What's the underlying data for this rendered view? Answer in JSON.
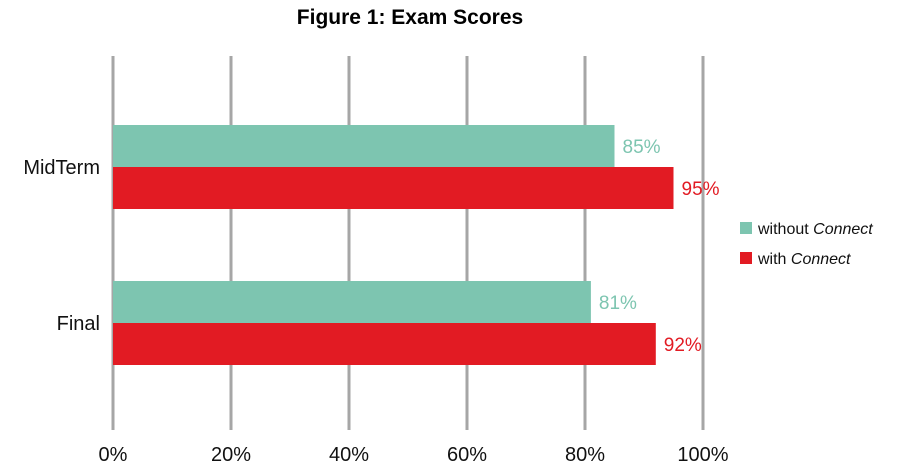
{
  "chart_data": {
    "type": "bar",
    "orientation": "horizontal",
    "title": "Figure 1: Exam Scores",
    "categories": [
      "MidTerm",
      "Final"
    ],
    "series": [
      {
        "name": "without Connect",
        "name_plain": "without ",
        "name_italic": "Connect",
        "color": "#7dc5b0",
        "values": [
          85,
          81
        ],
        "labels": [
          "85%",
          "81%"
        ]
      },
      {
        "name": "with Connect",
        "name_plain": "with ",
        "name_italic": "Connect",
        "color": "#e21b23",
        "values": [
          95,
          92
        ],
        "labels": [
          "95%",
          "92%"
        ]
      }
    ],
    "x_ticks": [
      "0%",
      "20%",
      "40%",
      "60%",
      "80%",
      "100%"
    ],
    "xlim": [
      0,
      100
    ],
    "grid": true,
    "legend": "right"
  }
}
